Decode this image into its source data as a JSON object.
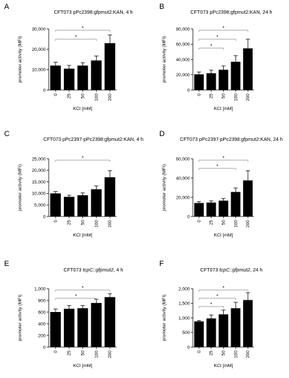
{
  "figure": {
    "panels": [
      {
        "letter": "A",
        "title_parts": [
          {
            "text": "CFT073 pPc2398:gfpmut2:KAN, 4 h",
            "italic": false
          }
        ],
        "chart_data": {
          "type": "bar",
          "categories": [
            "0",
            "25",
            "50",
            "100",
            "200"
          ],
          "values": [
            12000,
            10500,
            12000,
            14500,
            23000
          ],
          "errors": [
            1600,
            1600,
            1400,
            2200,
            4000
          ],
          "xlabel": "KCl [mM]",
          "ylabel": "promoter activity (MFI)",
          "yticks": [
            "0",
            "10,000",
            "20,000",
            "30,000"
          ],
          "ylim": [
            0,
            30000
          ],
          "significance": [
            {
              "from": "0",
              "to": "200",
              "label": "*"
            },
            {
              "from": "0",
              "to": "100",
              "label": "*"
            }
          ]
        }
      },
      {
        "letter": "B",
        "title_parts": [
          {
            "text": "CFT073 pPc2398:gfpmut2:KAN, 24 h",
            "italic": false
          }
        ],
        "chart_data": {
          "type": "bar",
          "categories": [
            "0",
            "25",
            "50",
            "100",
            "200"
          ],
          "values": [
            20500,
            22000,
            26500,
            37000,
            54500
          ],
          "errors": [
            3000,
            4000,
            5000,
            8000,
            12000
          ],
          "xlabel": "KCl [mM]",
          "ylabel": "promoter activity (MFI)",
          "yticks": [
            "0",
            "20,000",
            "40,000",
            "60,000",
            "80,000"
          ],
          "ylim": [
            0,
            80000
          ],
          "significance": [
            {
              "from": "0",
              "to": "200",
              "label": "*"
            },
            {
              "from": "0",
              "to": "100",
              "label": "*"
            },
            {
              "from": "0",
              "to": "50",
              "label": "*"
            }
          ]
        }
      },
      {
        "letter": "C",
        "title_parts": [
          {
            "text": "CFT073 pPc2397-pPc2398:gfpmut2:KAN, 4 h",
            "italic": false
          }
        ],
        "chart_data": {
          "type": "bar",
          "categories": [
            "0",
            "25",
            "50",
            "100",
            "200"
          ],
          "values": [
            10000,
            8500,
            9200,
            11800,
            17000
          ],
          "errors": [
            800,
            700,
            1000,
            1400,
            2800
          ],
          "xlabel": "KCl [mM]",
          "ylabel": "promoter activity (MFI)",
          "yticks": [
            "0",
            "5,000",
            "10,000",
            "15,000",
            "20,000",
            "25,000"
          ],
          "ylim": [
            0,
            25000
          ],
          "significance": [
            {
              "from": "0",
              "to": "200",
              "label": "*"
            }
          ]
        }
      },
      {
        "letter": "D",
        "title_parts": [
          {
            "text": "CFT073 pPc2397-pPc2398:gfpmut2:KAN, 24 h",
            "italic": false
          }
        ],
        "chart_data": {
          "type": "bar",
          "categories": [
            "0",
            "25",
            "50",
            "100",
            "200"
          ],
          "values": [
            14000,
            14500,
            16500,
            25500,
            37500
          ],
          "errors": [
            1500,
            1800,
            2200,
            4000,
            10000
          ],
          "xlabel": "KCl [mM]",
          "ylabel": "promoter activity (MFI)",
          "yticks": [
            "0",
            "20,000",
            "40,000",
            "60,000"
          ],
          "ylim": [
            0,
            60000
          ],
          "significance": [
            {
              "from": "0",
              "to": "200",
              "label": "*"
            },
            {
              "from": "0",
              "to": "100",
              "label": "*"
            }
          ]
        }
      },
      {
        "letter": "E",
        "title_parts": [
          {
            "text": "CFT073 ",
            "italic": false
          },
          {
            "text": "tcpC::gfpmut2",
            "italic": true
          },
          {
            "text": ", 4 h",
            "italic": false
          }
        ],
        "chart_data": {
          "type": "bar",
          "categories": [
            "0",
            "25",
            "50",
            "100",
            "200"
          ],
          "values": [
            600,
            655,
            665,
            755,
            855
          ],
          "errors": [
            50,
            55,
            45,
            65,
            60
          ],
          "xlabel": "KCl [mM]",
          "ylabel": "promoter activity (MFI)",
          "yticks": [
            "0",
            "200",
            "400",
            "600",
            "800",
            "1,000"
          ],
          "ylim": [
            0,
            1000
          ],
          "significance": [
            {
              "from": "0",
              "to": "200",
              "label": "*"
            },
            {
              "from": "0",
              "to": "100",
              "label": "*"
            }
          ]
        }
      },
      {
        "letter": "F",
        "title_parts": [
          {
            "text": "CFT073 ",
            "italic": false
          },
          {
            "text": "tcpC::gfpmut2",
            "italic": true
          },
          {
            "text": ", 24 h",
            "italic": false
          }
        ],
        "chart_data": {
          "type": "bar",
          "categories": [
            "0",
            "25",
            "50",
            "100",
            "200"
          ],
          "values": [
            880,
            980,
            1120,
            1330,
            1610
          ],
          "errors": [
            30,
            120,
            150,
            200,
            250
          ],
          "xlabel": "KCl [mM]",
          "ylabel": "promoter activity (MFI)",
          "yticks": [
            "0",
            "500",
            "1,000",
            "1,500",
            "2,000"
          ],
          "ylim": [
            0,
            2000
          ],
          "significance": [
            {
              "from": "0",
              "to": "200",
              "label": "*"
            },
            {
              "from": "0",
              "to": "100",
              "label": "*"
            },
            {
              "from": "0",
              "to": "50",
              "label": "*"
            }
          ]
        }
      }
    ]
  }
}
